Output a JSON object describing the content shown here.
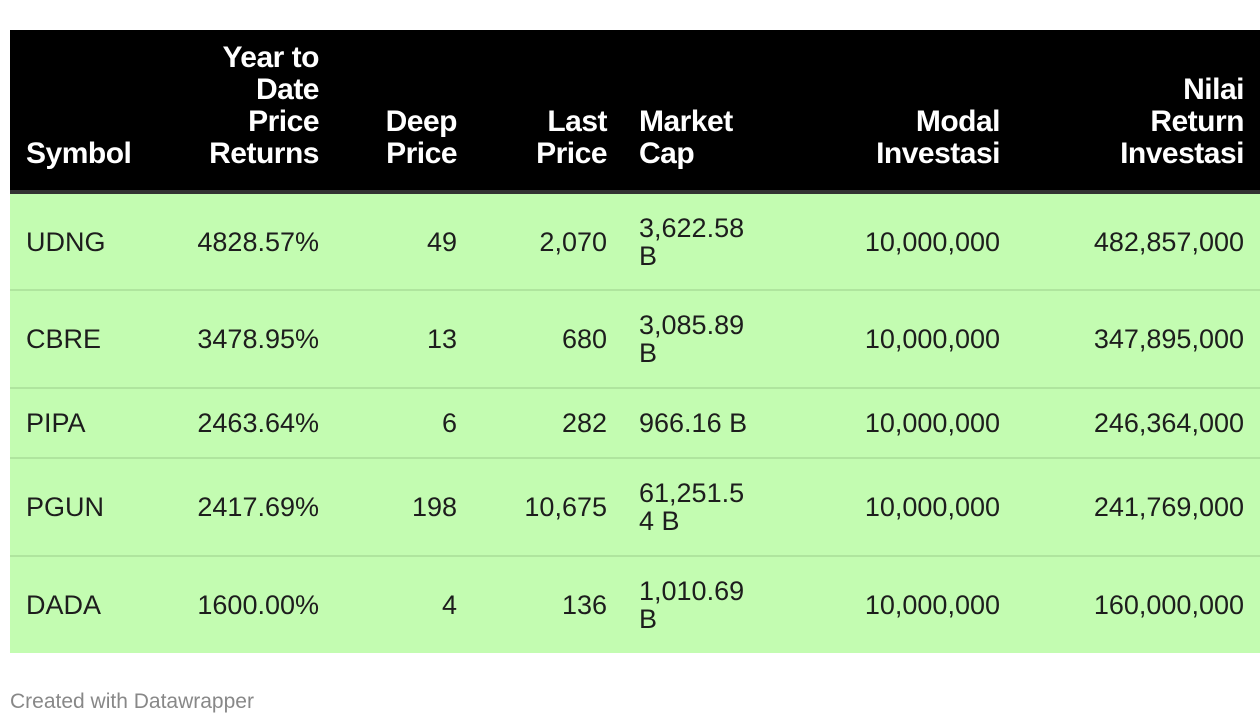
{
  "chart_data": {
    "type": "table",
    "columns": [
      {
        "key": "symbol",
        "label": "Symbol",
        "align": "left"
      },
      {
        "key": "ytd",
        "label": "Year to\nDate\nPrice\nReturns",
        "align": "right"
      },
      {
        "key": "deep",
        "label": "Deep\nPrice",
        "align": "right"
      },
      {
        "key": "last",
        "label": "Last\nPrice",
        "align": "right"
      },
      {
        "key": "mcap",
        "label": "Market\nCap",
        "align": "left"
      },
      {
        "key": "modal",
        "label": "Modal\nInvestasi",
        "align": "right"
      },
      {
        "key": "nilai",
        "label": "Nilai\nReturn\nInvestasi",
        "align": "right"
      }
    ],
    "rows": [
      {
        "symbol": "UDNG",
        "ytd": "4828.57%",
        "deep": "49",
        "last": "2,070",
        "mcap": "3,622.58 B",
        "modal": "10,000,000",
        "nilai": "482,857,000"
      },
      {
        "symbol": "CBRE",
        "ytd": "3478.95%",
        "deep": "13",
        "last": "680",
        "mcap": "3,085.89 B",
        "modal": "10,000,000",
        "nilai": "347,895,000"
      },
      {
        "symbol": "PIPA",
        "ytd": "2463.64%",
        "deep": "6",
        "last": "282",
        "mcap": "966.16 B",
        "modal": "10,000,000",
        "nilai": "246,364,000"
      },
      {
        "symbol": "PGUN",
        "ytd": "2417.69%",
        "deep": "198",
        "last": "10,675",
        "mcap": "61,251.54 B",
        "modal": "10,000,000",
        "nilai": "241,769,000"
      },
      {
        "symbol": "DADA",
        "ytd": "1600.00%",
        "deep": "4",
        "last": "136",
        "mcap": "1,010.69 B",
        "modal": "10,000,000",
        "nilai": "160,000,000"
      }
    ],
    "colors": {
      "header_bg": "#000000",
      "header_text": "#ffffff",
      "row_bg": "#c3fcb1",
      "row_border": "#afe59e"
    }
  },
  "footer": {
    "credit": "Created with Datawrapper"
  }
}
